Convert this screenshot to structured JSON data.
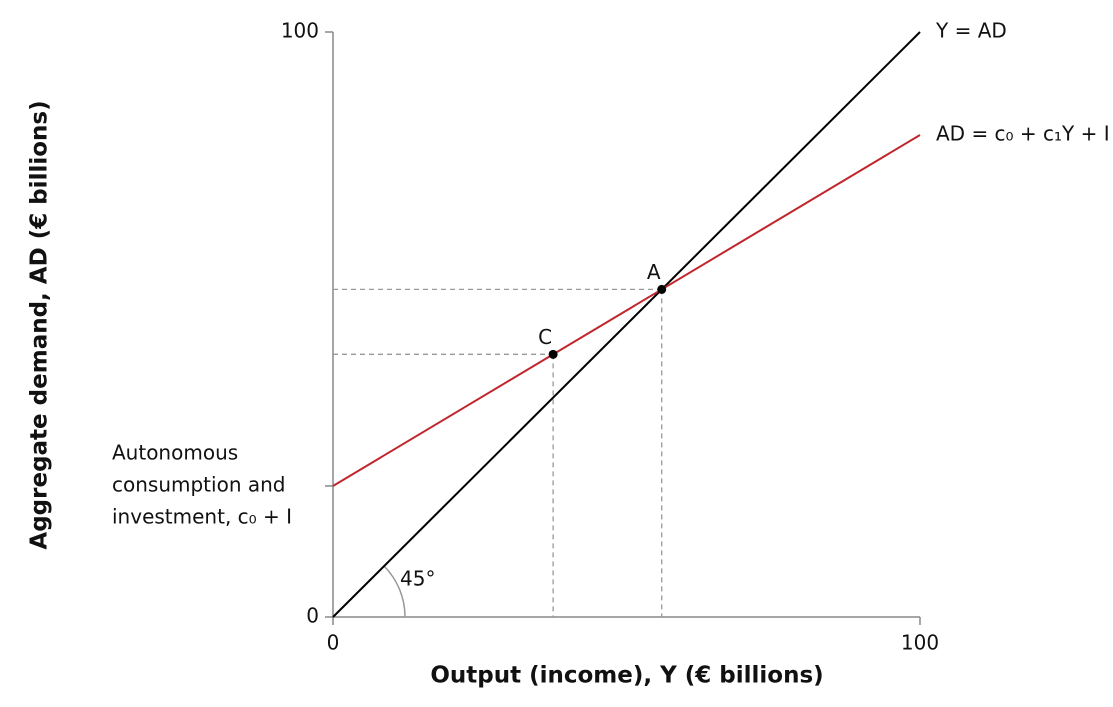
{
  "chart_data": {
    "type": "line",
    "xlabel": "Output (income), Y (€ billions)",
    "ylabel": "Aggregate demand, AD (€ billions)",
    "xlim": [
      0,
      100
    ],
    "ylim": [
      0,
      100
    ],
    "xticks": [
      0,
      100
    ],
    "yticks": [
      0,
      100
    ],
    "series": [
      {
        "name": "Y = AD",
        "color": "#000000",
        "x": [
          0,
          100
        ],
        "values": [
          0,
          100
        ]
      },
      {
        "name": "AD = c₀ + c₁Y + I",
        "color": "#c0272d",
        "x": [
          0,
          100
        ],
        "values": [
          22.4,
          82.4
        ]
      }
    ],
    "points": [
      {
        "label": "A",
        "x": 56,
        "y": 56
      },
      {
        "label": "C",
        "x": 37.5,
        "y": 44.9
      }
    ],
    "intercept_label": [
      "Autonomous",
      "consumption and",
      "investment, c₀ + I"
    ],
    "angle_label": "45°"
  }
}
